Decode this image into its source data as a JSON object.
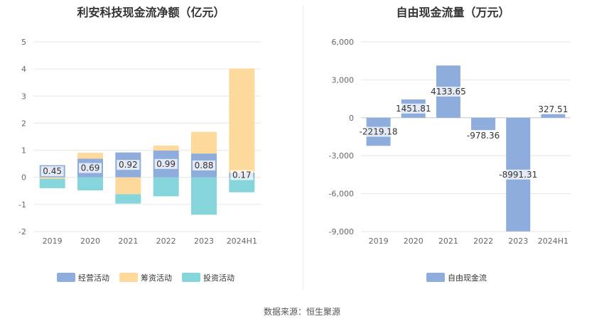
{
  "left_title": "利安科技现金流净额（亿元）",
  "right_title": "自由现金流量（万元）",
  "source": "数据来源：恒生聚源",
  "chart_data": [
    {
      "type": "bar",
      "stacked": true,
      "title": "利安科技现金流净额（亿元）",
      "categories": [
        "2019",
        "2020",
        "2021",
        "2022",
        "2023",
        "2024H1"
      ],
      "ylim": [
        -2,
        5
      ],
      "yticks": [
        -2,
        -1,
        0,
        1,
        2,
        3,
        4,
        5
      ],
      "grid": true,
      "legend_position": "bottom",
      "series": [
        {
          "name": "经营活动",
          "color": "#8eacdc",
          "values": [
            0.45,
            0.69,
            0.92,
            0.99,
            0.88,
            0.17
          ],
          "labels": [
            "0.45",
            "0.69",
            "0.92",
            "0.99",
            "0.88",
            "0.17"
          ]
        },
        {
          "name": "筹资活动",
          "color": "#fdd99b",
          "values": [
            -0.05,
            0.22,
            -0.62,
            0.18,
            0.8,
            3.85
          ]
        },
        {
          "name": "投资活动",
          "color": "#86d5db",
          "values": [
            -0.35,
            -0.48,
            -0.35,
            -0.7,
            -1.38,
            -0.55
          ]
        }
      ]
    },
    {
      "type": "bar",
      "title": "自由现金流量（万元）",
      "categories": [
        "2019",
        "2020",
        "2021",
        "2022",
        "2023",
        "2024H1"
      ],
      "ylim": [
        -9000,
        6000
      ],
      "yticks": [
        -9000,
        -6000,
        -3000,
        0,
        3000,
        6000
      ],
      "ytick_labels": [
        "-9,000",
        "-6,000",
        "-3,000",
        "0",
        "3,000",
        "6,000"
      ],
      "grid": true,
      "legend_position": "bottom",
      "series": [
        {
          "name": "自由现金流",
          "color": "#8eacdc",
          "values": [
            -2219.18,
            1451.81,
            4133.65,
            -978.36,
            -8991.31,
            327.51
          ],
          "labels": [
            "-2219.18",
            "1451.81",
            "4133.65",
            "-978.36",
            "-8991.31",
            "327.51"
          ]
        }
      ]
    }
  ]
}
